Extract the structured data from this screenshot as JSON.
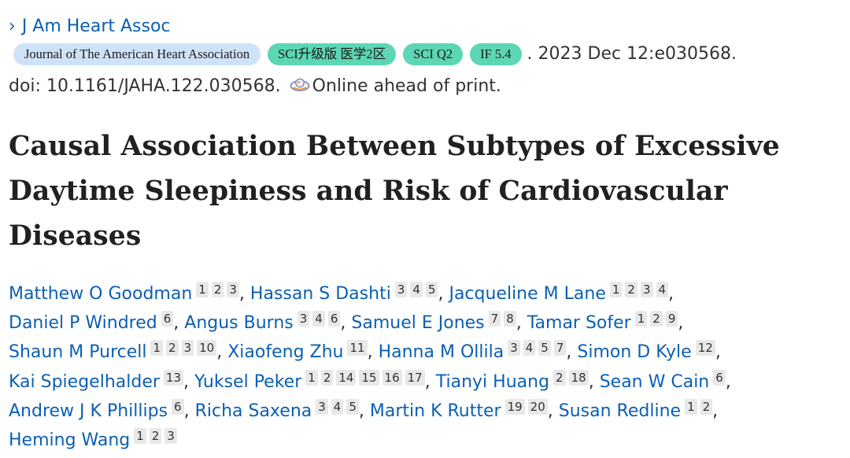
{
  "journal": {
    "chevron": "›",
    "short_name": "J Am Heart Assoc",
    "full_name": "Journal of The American Heart Association",
    "badges": [
      "SCI升级版 医学2区",
      "SCI Q2",
      "IF 5.4"
    ],
    "badge_color": "#5cd6b4",
    "fullname_badge_color": "#cfe2f8"
  },
  "citation": {
    "date_tail": ". 2023 Dec 12:e030568.",
    "doi": "doi: 10.1161/JAHA.122.030568.",
    "status_icon": "online-ahead-icon",
    "status": "Online ahead of print."
  },
  "title": "Causal Association Between Subtypes of Excessive Daytime Sleepiness and Risk of Cardiovascular Diseases",
  "authors": [
    {
      "name": "Matthew O Goodman",
      "affs": [
        "1",
        "2",
        "3"
      ]
    },
    {
      "name": "Hassan S Dashti",
      "affs": [
        "3",
        "4",
        "5"
      ]
    },
    {
      "name": "Jacqueline M Lane",
      "affs": [
        "1",
        "2",
        "3",
        "4"
      ]
    },
    {
      "name": "Daniel P Windred",
      "affs": [
        "6"
      ]
    },
    {
      "name": "Angus Burns",
      "affs": [
        "3",
        "4",
        "6"
      ]
    },
    {
      "name": "Samuel E Jones",
      "affs": [
        "7",
        "8"
      ]
    },
    {
      "name": "Tamar Sofer",
      "affs": [
        "1",
        "2",
        "9"
      ]
    },
    {
      "name": "Shaun M Purcell",
      "affs": [
        "1",
        "2",
        "3",
        "10"
      ]
    },
    {
      "name": "Xiaofeng Zhu",
      "affs": [
        "11"
      ]
    },
    {
      "name": "Hanna M Ollila",
      "affs": [
        "3",
        "4",
        "5",
        "7"
      ]
    },
    {
      "name": "Simon D Kyle",
      "affs": [
        "12"
      ]
    },
    {
      "name": "Kai Spiegelhalder",
      "affs": [
        "13"
      ]
    },
    {
      "name": "Yuksel Peker",
      "affs": [
        "1",
        "2",
        "14",
        "15",
        "16",
        "17"
      ]
    },
    {
      "name": "Tianyi Huang",
      "affs": [
        "2",
        "18"
      ]
    },
    {
      "name": "Sean W Cain",
      "affs": [
        "6"
      ]
    },
    {
      "name": "Andrew J K Phillips",
      "affs": [
        "6"
      ]
    },
    {
      "name": "Richa Saxena",
      "affs": [
        "3",
        "4",
        "5"
      ]
    },
    {
      "name": "Martin K Rutter",
      "affs": [
        "19",
        "20"
      ]
    },
    {
      "name": "Susan Redline",
      "affs": [
        "1",
        "2"
      ]
    },
    {
      "name": "Heming Wang",
      "affs": [
        "1",
        "2",
        "3"
      ]
    }
  ],
  "author_separator": ","
}
